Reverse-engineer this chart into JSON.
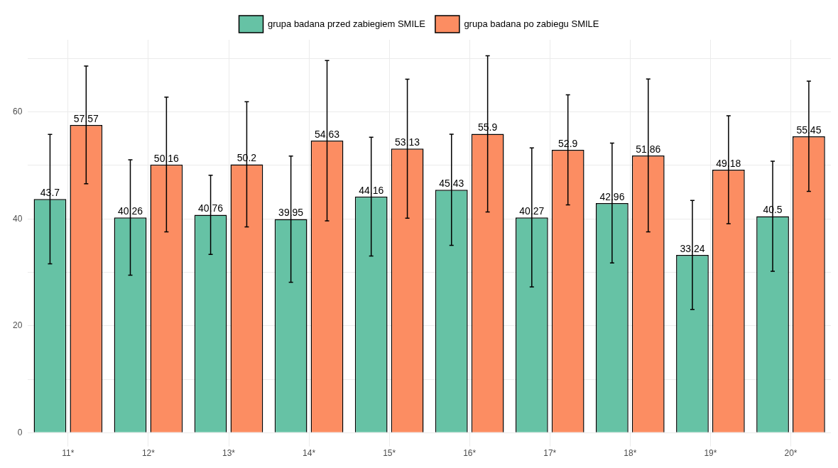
{
  "chart_data": {
    "type": "bar",
    "categories": [
      "11*",
      "12*",
      "13*",
      "14*",
      "15*",
      "16*",
      "17*",
      "18*",
      "19*",
      "20*"
    ],
    "series": [
      {
        "name": "grupa badana przed zabiegiem SMILE",
        "color": "#66c2a5",
        "values": [
          43.7,
          40.26,
          40.76,
          39.95,
          44.16,
          45.43,
          40.27,
          42.96,
          33.24,
          40.5
        ],
        "errors": [
          12.1,
          10.8,
          7.4,
          11.8,
          11.1,
          10.4,
          13.0,
          11.2,
          10.2,
          10.3
        ]
      },
      {
        "name": "grupa badana po zabiegu SMILE",
        "color": "#fc8d62",
        "values": [
          57.57,
          50.16,
          50.2,
          54.63,
          53.13,
          55.9,
          52.9,
          51.86,
          49.18,
          55.45
        ],
        "errors": [
          11.0,
          12.6,
          11.7,
          15.0,
          13.0,
          14.6,
          10.3,
          14.3,
          10.1,
          10.3
        ]
      }
    ],
    "ylim": [
      -1.5,
      73.5
    ],
    "yticks": [
      0,
      {
        "value": 10,
        "label": null
      },
      20,
      {
        "value": 30,
        "label": null
      },
      40,
      {
        "value": 50,
        "label": null
      },
      60,
      {
        "value": 70,
        "label": null
      }
    ],
    "grid": true,
    "legend": "top",
    "data_labels": true
  }
}
